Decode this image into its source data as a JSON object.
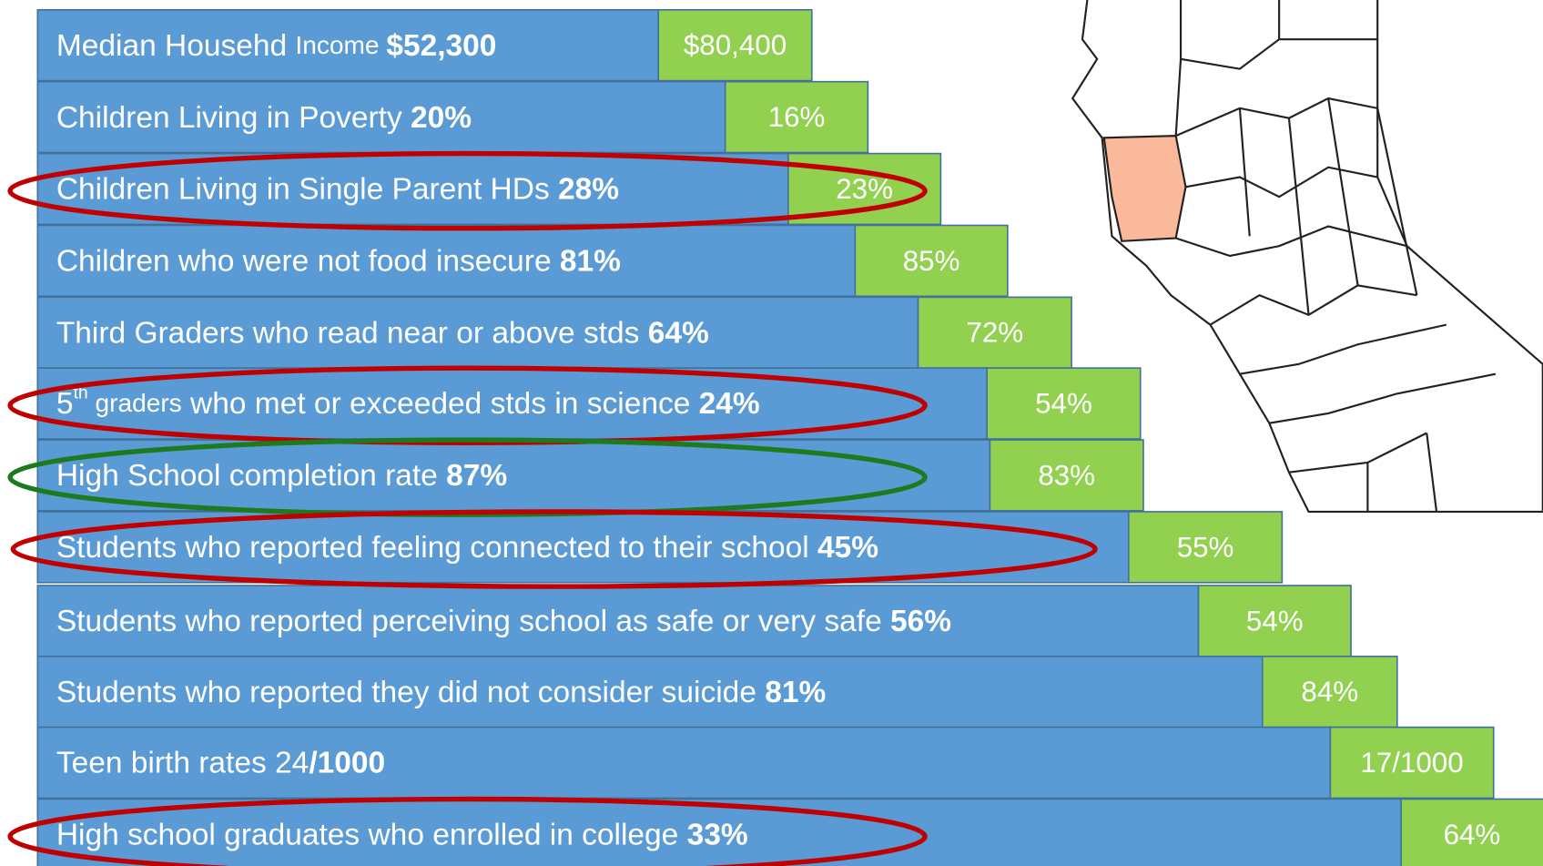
{
  "rows": [
    {
      "segments": [
        {
          "text": "Median Househd ",
          "style": "normal"
        },
        {
          "text": "Income ",
          "style": "small"
        },
        {
          "text": "$52,300",
          "style": "bold"
        }
      ],
      "comparison": "$80,400",
      "highlight": null
    },
    {
      "segments": [
        {
          "text": "Children Living in Poverty ",
          "style": "normal"
        },
        {
          "text": "20%",
          "style": "bold"
        }
      ],
      "comparison": "16%",
      "highlight": null
    },
    {
      "segments": [
        {
          "text": "Children Living in Single Parent HDs ",
          "style": "normal"
        },
        {
          "text": "28%",
          "style": "bold"
        }
      ],
      "comparison": "23%",
      "highlight": "#c00000"
    },
    {
      "segments": [
        {
          "text": "Children who were not food insecure ",
          "style": "normal"
        },
        {
          "text": "81%",
          "style": "bold"
        }
      ],
      "comparison": "85%",
      "highlight": null
    },
    {
      "segments": [
        {
          "text": "Third Graders who read near or above stds  ",
          "style": "normal"
        },
        {
          "text": "64%",
          "style": "bold"
        }
      ],
      "comparison": "72%",
      "highlight": null
    },
    {
      "segments": [
        {
          "text": "5",
          "style": "normal"
        },
        {
          "text": "th",
          "style": "sup"
        },
        {
          "text": " graders",
          "style": "small"
        },
        {
          "text": " who met or exceeded stds in science ",
          "style": "normal"
        },
        {
          "text": "24%",
          "style": "bold"
        }
      ],
      "comparison": "54%",
      "highlight": "#c00000"
    },
    {
      "segments": [
        {
          "text": "High School completion rate  ",
          "style": "normal"
        },
        {
          "text": "87%",
          "style": "bold"
        }
      ],
      "comparison": "83%",
      "highlight": "#1e7a1e"
    },
    {
      "segments": [
        {
          "text": "Students who reported feeling connected to their school ",
          "style": "normal"
        },
        {
          "text": "45%",
          "style": "bold"
        }
      ],
      "comparison": "55%",
      "highlight": "#c00000"
    },
    {
      "segments": [
        {
          "text": "Students who reported perceiving school as safe or very safe ",
          "style": "normal"
        },
        {
          "text": "56%",
          "style": "bold"
        }
      ],
      "comparison": "54%",
      "highlight": null
    },
    {
      "segments": [
        {
          "text": "Students who reported they did not consider suicide ",
          "style": "normal"
        },
        {
          "text": "81%",
          "style": "bold"
        }
      ],
      "comparison": "84%",
      "highlight": null
    },
    {
      "segments": [
        {
          "text": "Teen birth rates 24",
          "style": "normal"
        },
        {
          "text": "/1000",
          "style": "bold"
        }
      ],
      "comparison": "17/1000",
      "highlight": null
    },
    {
      "segments": [
        {
          "text": "High school graduates who enrolled in college ",
          "style": "normal"
        },
        {
          "text": "33%",
          "style": "bold"
        }
      ],
      "comparison": "64%",
      "highlight": "#c00000"
    }
  ]
}
